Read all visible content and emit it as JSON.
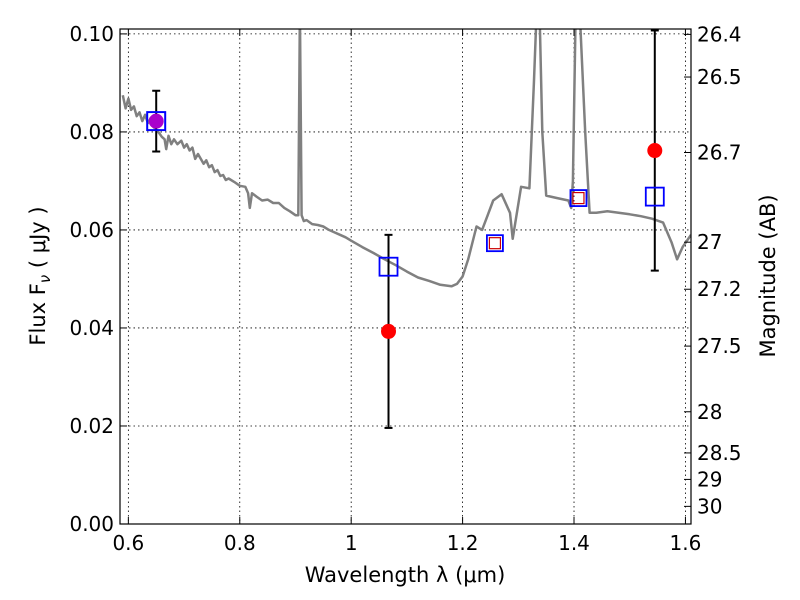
{
  "chart_data": {
    "type": "scatter",
    "xlabel": "Wavelength  λ (μm)",
    "ylabel_left": "Flux  F",
    "ylabel_left_sub": "ν",
    "ylabel_left_unit": " ( μJy )",
    "ylabel_right": "Magnitude (AB)",
    "xlim": [
      0.585,
      1.61
    ],
    "ylim": [
      0.0,
      0.101
    ],
    "grid": true,
    "x_ticks": [
      {
        "v": 0.6,
        "label": "0.6"
      },
      {
        "v": 0.8,
        "label": "0.8"
      },
      {
        "v": 1.0,
        "label": "1"
      },
      {
        "v": 1.2,
        "label": "1.2"
      },
      {
        "v": 1.4,
        "label": "1.4"
      },
      {
        "v": 1.6,
        "label": "1.6"
      }
    ],
    "y_ticks": [
      {
        "v": 0.0,
        "label": "0.00"
      },
      {
        "v": 0.02,
        "label": "0.02"
      },
      {
        "v": 0.04,
        "label": "0.04"
      },
      {
        "v": 0.06,
        "label": "0.06"
      },
      {
        "v": 0.08,
        "label": "0.08"
      },
      {
        "v": 0.1,
        "label": "0.10"
      }
    ],
    "right_ticks": [
      {
        "label": "26.4",
        "flux": 0.0999
      },
      {
        "label": "26.5",
        "flux": 0.0912
      },
      {
        "label": "26.7",
        "flux": 0.0758
      },
      {
        "label": "27",
        "flux": 0.0575
      },
      {
        "label": "27.2",
        "flux": 0.0479
      },
      {
        "label": "27.5",
        "flux": 0.0363
      },
      {
        "label": "28",
        "flux": 0.0229
      },
      {
        "label": "28.5",
        "flux": 0.0145
      },
      {
        "label": "29",
        "flux": 0.0091
      },
      {
        "label": "30",
        "flux": 0.0036
      }
    ],
    "series": [
      {
        "kind": "model_spectrum",
        "color": "#808080",
        "points": [
          [
            0.59,
            0.0875
          ],
          [
            0.595,
            0.0848
          ],
          [
            0.6,
            0.0868
          ],
          [
            0.605,
            0.0845
          ],
          [
            0.61,
            0.0852
          ],
          [
            0.615,
            0.0832
          ],
          [
            0.62,
            0.084
          ],
          [
            0.625,
            0.0822
          ],
          [
            0.63,
            0.0835
          ],
          [
            0.635,
            0.0818
          ],
          [
            0.64,
            0.0828
          ],
          [
            0.645,
            0.081
          ],
          [
            0.65,
            0.0805
          ],
          [
            0.655,
            0.0798
          ],
          [
            0.66,
            0.079
          ],
          [
            0.665,
            0.0785
          ],
          [
            0.668,
            0.0765
          ],
          [
            0.672,
            0.0792
          ],
          [
            0.677,
            0.0775
          ],
          [
            0.682,
            0.0785
          ],
          [
            0.688,
            0.0775
          ],
          [
            0.695,
            0.0782
          ],
          [
            0.7,
            0.0768
          ],
          [
            0.705,
            0.0775
          ],
          [
            0.71,
            0.0762
          ],
          [
            0.715,
            0.0768
          ],
          [
            0.72,
            0.0745
          ],
          [
            0.725,
            0.0755
          ],
          [
            0.73,
            0.0745
          ],
          [
            0.735,
            0.0735
          ],
          [
            0.74,
            0.0742
          ],
          [
            0.745,
            0.0728
          ],
          [
            0.75,
            0.0732
          ],
          [
            0.755,
            0.0718
          ],
          [
            0.76,
            0.0722
          ],
          [
            0.765,
            0.071
          ],
          [
            0.77,
            0.0712
          ],
          [
            0.775,
            0.0702
          ],
          [
            0.78,
            0.0705
          ],
          [
            0.79,
            0.0698
          ],
          [
            0.8,
            0.069
          ],
          [
            0.81,
            0.0688
          ],
          [
            0.815,
            0.0675
          ],
          [
            0.818,
            0.0645
          ],
          [
            0.822,
            0.0675
          ],
          [
            0.83,
            0.0668
          ],
          [
            0.84,
            0.066
          ],
          [
            0.85,
            0.0662
          ],
          [
            0.86,
            0.0655
          ],
          [
            0.87,
            0.0655
          ],
          [
            0.88,
            0.0645
          ],
          [
            0.89,
            0.0638
          ],
          [
            0.9,
            0.063
          ],
          [
            0.905,
            0.063
          ],
          [
            0.908,
            0.105
          ],
          [
            0.911,
            0.063
          ],
          [
            0.915,
            0.0618
          ],
          [
            0.92,
            0.062
          ],
          [
            0.93,
            0.0612
          ],
          [
            0.94,
            0.061
          ],
          [
            0.95,
            0.0607
          ],
          [
            0.96,
            0.06
          ],
          [
            0.97,
            0.0595
          ],
          [
            0.98,
            0.059
          ],
          [
            0.99,
            0.0585
          ],
          [
            1.0,
            0.0578
          ],
          [
            1.02,
            0.0565
          ],
          [
            1.04,
            0.0553
          ],
          [
            1.06,
            0.054
          ],
          [
            1.08,
            0.0528
          ],
          [
            1.1,
            0.0515
          ],
          [
            1.12,
            0.0503
          ],
          [
            1.14,
            0.0496
          ],
          [
            1.16,
            0.0488
          ],
          [
            1.18,
            0.0485
          ],
          [
            1.19,
            0.049
          ],
          [
            1.2,
            0.0505
          ],
          [
            1.21,
            0.054
          ],
          [
            1.225,
            0.0607
          ],
          [
            1.235,
            0.06
          ],
          [
            1.245,
            0.063
          ],
          [
            1.255,
            0.066
          ],
          [
            1.27,
            0.0673
          ],
          [
            1.285,
            0.0635
          ],
          [
            1.29,
            0.0582
          ],
          [
            1.305,
            0.0688
          ],
          [
            1.32,
            0.0685
          ],
          [
            1.328,
            0.09
          ],
          [
            1.333,
            0.105
          ],
          [
            1.338,
            0.105
          ],
          [
            1.343,
            0.08
          ],
          [
            1.35,
            0.067
          ],
          [
            1.37,
            0.0665
          ],
          [
            1.39,
            0.066
          ],
          [
            1.395,
            0.0645
          ],
          [
            1.398,
            0.07
          ],
          [
            1.403,
            0.105
          ],
          [
            1.41,
            0.105
          ],
          [
            1.42,
            0.08
          ],
          [
            1.428,
            0.0635
          ],
          [
            1.44,
            0.0635
          ],
          [
            1.46,
            0.0638
          ],
          [
            1.48,
            0.0635
          ],
          [
            1.5,
            0.0632
          ],
          [
            1.52,
            0.0628
          ],
          [
            1.54,
            0.0623
          ],
          [
            1.56,
            0.0615
          ],
          [
            1.575,
            0.0575
          ],
          [
            1.585,
            0.054
          ],
          [
            1.595,
            0.0565
          ],
          [
            1.61,
            0.059
          ]
        ]
      },
      {
        "kind": "observed",
        "marker": "circle",
        "color": "#ff0000",
        "points": [
          {
            "x": 0.65,
            "y": 0.0822,
            "err": 0.0062
          },
          {
            "x": 1.067,
            "y": 0.0393,
            "err": 0.0197
          },
          {
            "x": 1.545,
            "y": 0.0762,
            "err": 0.0245
          }
        ]
      },
      {
        "kind": "model_photometry",
        "marker": "square",
        "color": "#0000ff",
        "points": [
          {
            "x": 0.65,
            "y": 0.0822
          },
          {
            "x": 1.067,
            "y": 0.0525
          },
          {
            "x": 1.545,
            "y": 0.0668
          }
        ]
      },
      {
        "kind": "model_photometry_small",
        "marker": "square",
        "color": "#cc0000",
        "points": [
          {
            "x": 1.258,
            "y": 0.0573
          },
          {
            "x": 1.408,
            "y": 0.0665
          }
        ]
      },
      {
        "kind": "model_photometry_blue",
        "marker": "square",
        "color": "#0000ff",
        "points": [
          {
            "x": 1.258,
            "y": 0.0573
          },
          {
            "x": 1.408,
            "y": 0.0665
          }
        ]
      }
    ],
    "colors": {
      "spectrum": "#808080",
      "observed": "#ff0000",
      "model": "#0000ff",
      "overlap": "#aa00cc"
    }
  }
}
